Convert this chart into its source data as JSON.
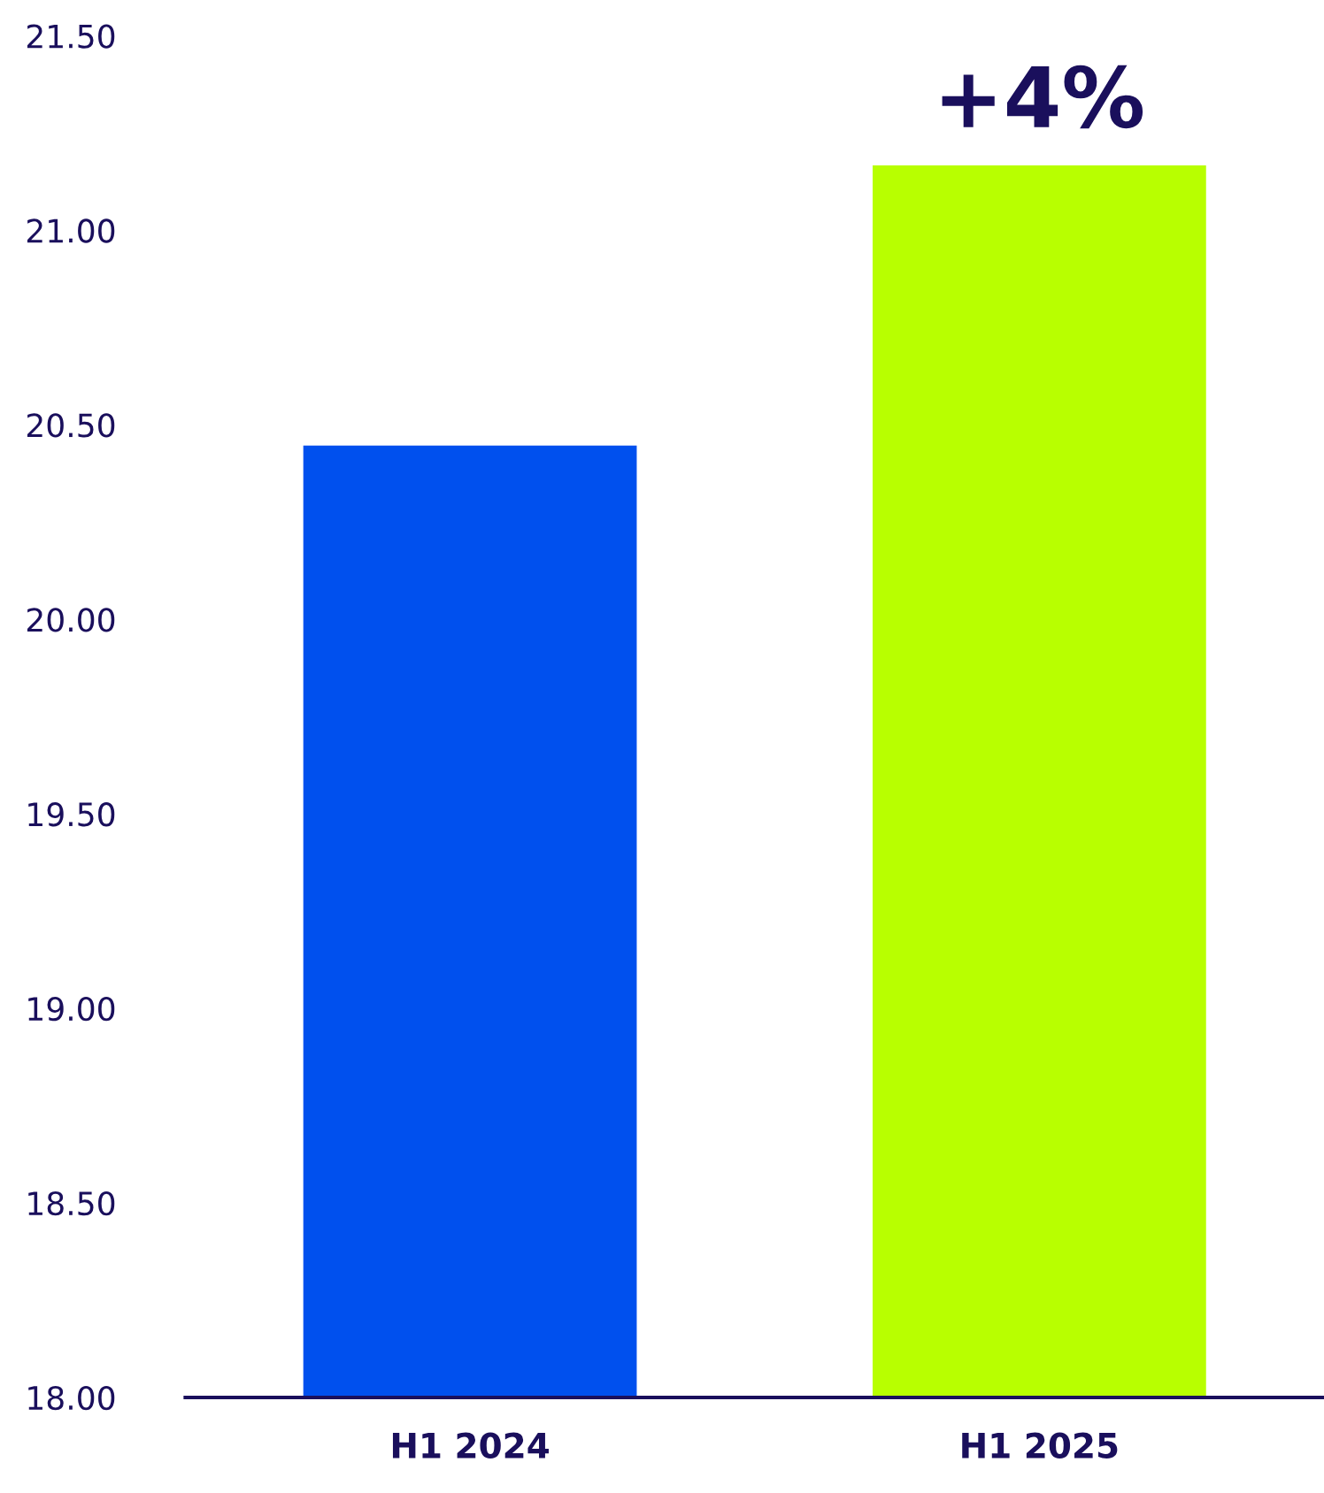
{
  "chart_data": {
    "type": "bar",
    "categories": [
      "H1 2024",
      "H1 2025"
    ],
    "values": [
      20.45,
      21.17
    ],
    "colors": [
      "#0050ee",
      "#b8ff00"
    ],
    "ylim": [
      18,
      21.5
    ],
    "yticks": [
      {
        "value": 18,
        "label": "18.00"
      },
      {
        "value": 18.5,
        "label": "18.50"
      },
      {
        "value": 19,
        "label": "19.00"
      },
      {
        "value": 19.5,
        "label": "19.50"
      },
      {
        "value": 20,
        "label": "20.00"
      },
      {
        "value": 20.5,
        "label": "20.50"
      },
      {
        "value": 21,
        "label": "21.00"
      },
      {
        "value": 21.5,
        "label": "21.50"
      }
    ],
    "annotations": [
      {
        "text": "+4%",
        "x": "H1 2025",
        "y": 21.17
      }
    ],
    "grid": false,
    "legend": false
  }
}
